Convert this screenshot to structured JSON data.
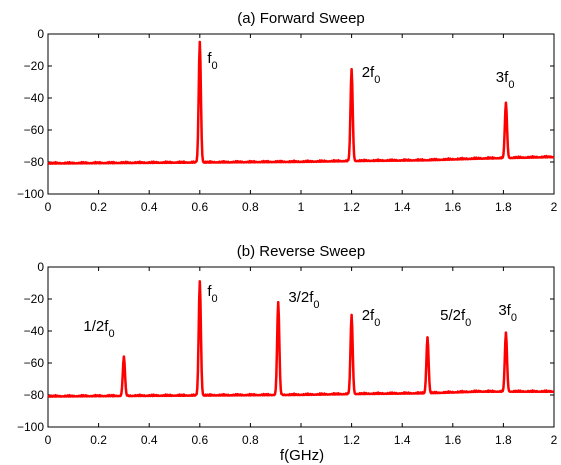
{
  "figure": {
    "xlabel": "f(GHz)"
  },
  "chart_data": [
    {
      "type": "line",
      "title": "(a) Forward Sweep",
      "xlabel": "",
      "ylabel": "",
      "xlim": [
        0,
        2
      ],
      "ylim": [
        -100,
        0
      ],
      "xticks": [
        0,
        0.2,
        0.4,
        0.6,
        0.8,
        1,
        1.2,
        1.4,
        1.6,
        1.8,
        2
      ],
      "xtick_labels": [
        "0",
        "0.2",
        "0.4",
        "0.6",
        "0.8",
        "1",
        "1.2",
        "1.4",
        "1.6",
        "1.8",
        "2"
      ],
      "yticks": [
        0,
        -20,
        -40,
        -60,
        -80,
        -100
      ],
      "ytick_labels": [
        "0",
        "−20",
        "−40",
        "−60",
        "−80",
        "−100"
      ],
      "grid": false,
      "color": "#ff0000",
      "baseline": [
        {
          "x": 0,
          "y": -81
        },
        {
          "x": 0.5,
          "y": -80.5
        },
        {
          "x": 1,
          "y": -80
        },
        {
          "x": 1.2,
          "y": -79.5
        },
        {
          "x": 1.5,
          "y": -79
        },
        {
          "x": 1.7,
          "y": -78
        },
        {
          "x": 2,
          "y": -77
        }
      ],
      "peaks": [
        {
          "x": 0.6,
          "y": -5
        },
        {
          "x": 1.2,
          "y": -22
        },
        {
          "x": 1.81,
          "y": -43
        }
      ],
      "annotations": [
        {
          "x": 0.63,
          "y": -18,
          "base": "f",
          "sub": "0"
        },
        {
          "x": 1.24,
          "y": -27,
          "base": "2f",
          "sub": "0"
        },
        {
          "x": 1.77,
          "y": -30,
          "base": "3f",
          "sub": "0"
        }
      ]
    },
    {
      "type": "line",
      "title": "(b) Reverse Sweep",
      "xlabel": "f(GHz)",
      "ylabel": "",
      "xlim": [
        0,
        2
      ],
      "ylim": [
        -100,
        0
      ],
      "xticks": [
        0,
        0.2,
        0.4,
        0.6,
        0.8,
        1,
        1.2,
        1.4,
        1.6,
        1.8,
        2
      ],
      "xtick_labels": [
        "0",
        "0.2",
        "0.4",
        "0.6",
        "0.8",
        "1",
        "1.2",
        "1.4",
        "1.6",
        "1.8",
        "2"
      ],
      "yticks": [
        0,
        -20,
        -40,
        -60,
        -80,
        -100
      ],
      "ytick_labels": [
        "0",
        "−20",
        "−40",
        "−60",
        "−80",
        "−100"
      ],
      "grid": false,
      "color": "#ff0000",
      "baseline": [
        {
          "x": 0,
          "y": -81
        },
        {
          "x": 0.5,
          "y": -80.5
        },
        {
          "x": 1,
          "y": -80
        },
        {
          "x": 1.2,
          "y": -79.5
        },
        {
          "x": 1.5,
          "y": -79
        },
        {
          "x": 1.7,
          "y": -78
        },
        {
          "x": 2,
          "y": -78
        }
      ],
      "peaks": [
        {
          "x": 0.3,
          "y": -56
        },
        {
          "x": 0.6,
          "y": -9
        },
        {
          "x": 0.91,
          "y": -22
        },
        {
          "x": 1.2,
          "y": -30
        },
        {
          "x": 1.5,
          "y": -44
        },
        {
          "x": 1.81,
          "y": -41
        }
      ],
      "annotations": [
        {
          "x": 0.14,
          "y": -40,
          "base": "1/2f",
          "sub": "0"
        },
        {
          "x": 0.63,
          "y": -18,
          "base": "f",
          "sub": "0"
        },
        {
          "x": 0.95,
          "y": -22,
          "base": "3/2f",
          "sub": "0"
        },
        {
          "x": 1.24,
          "y": -33,
          "base": "2f",
          "sub": "0"
        },
        {
          "x": 1.55,
          "y": -33,
          "base": "5/2f",
          "sub": "0"
        },
        {
          "x": 1.78,
          "y": -30,
          "base": "3f",
          "sub": "0"
        }
      ]
    }
  ]
}
